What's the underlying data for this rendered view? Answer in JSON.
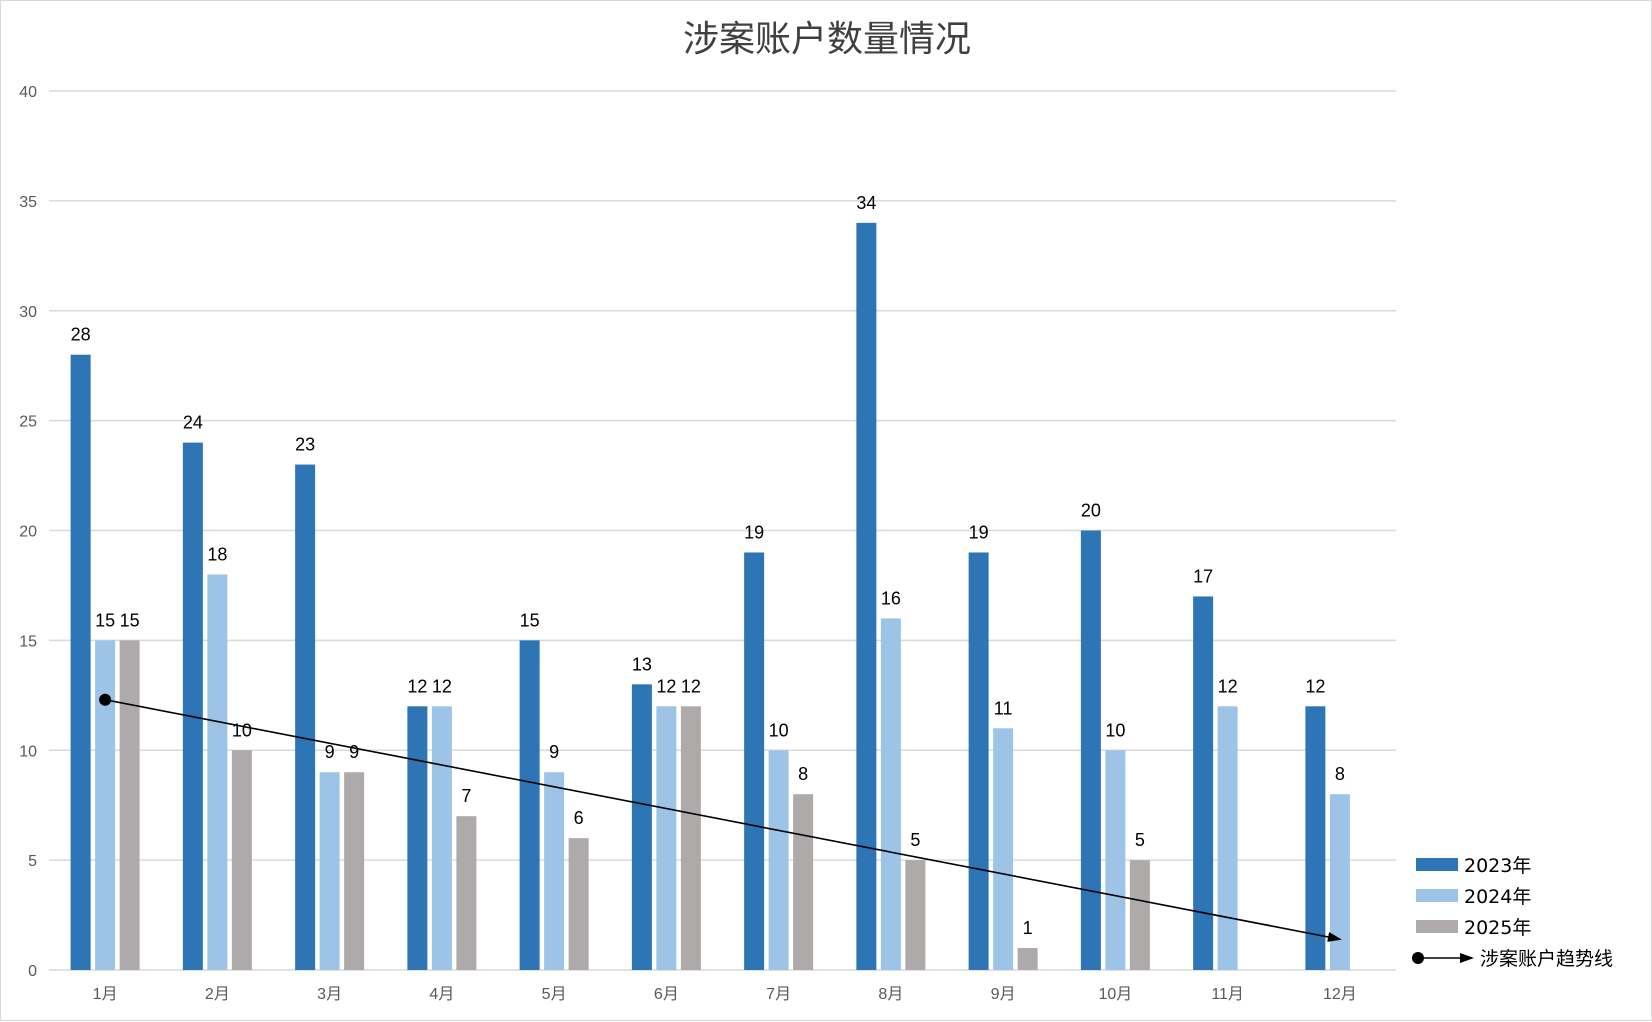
{
  "chart_data": {
    "type": "bar",
    "title": "涉案账户数量情况",
    "categories": [
      "1月",
      "2月",
      "3月",
      "4月",
      "5月",
      "6月",
      "7月",
      "8月",
      "9月",
      "10月",
      "11月",
      "12月"
    ],
    "series": [
      {
        "name": "2023年",
        "color": "#2e75b6",
        "values": [
          28,
          24,
          23,
          12,
          15,
          13,
          19,
          34,
          19,
          20,
          17,
          12
        ]
      },
      {
        "name": "2024年",
        "color": "#9dc3e6",
        "values": [
          15,
          18,
          9,
          12,
          9,
          12,
          10,
          16,
          11,
          10,
          12,
          8
        ]
      },
      {
        "name": "2025年",
        "color": "#aeaaaa",
        "values": [
          15,
          10,
          9,
          7,
          6,
          12,
          8,
          5,
          1,
          5,
          null,
          null
        ]
      }
    ],
    "trendline": {
      "name": "涉案账户趋势线",
      "start": {
        "x": "1月",
        "y": 12.3
      },
      "end": {
        "x": "12月",
        "y": 1.4
      },
      "color": "#000000"
    },
    "yticks": [
      0,
      5,
      10,
      15,
      20,
      25,
      30,
      35,
      40
    ],
    "ylim": [
      0,
      40
    ],
    "grid": true,
    "legend": "right-bottom"
  }
}
